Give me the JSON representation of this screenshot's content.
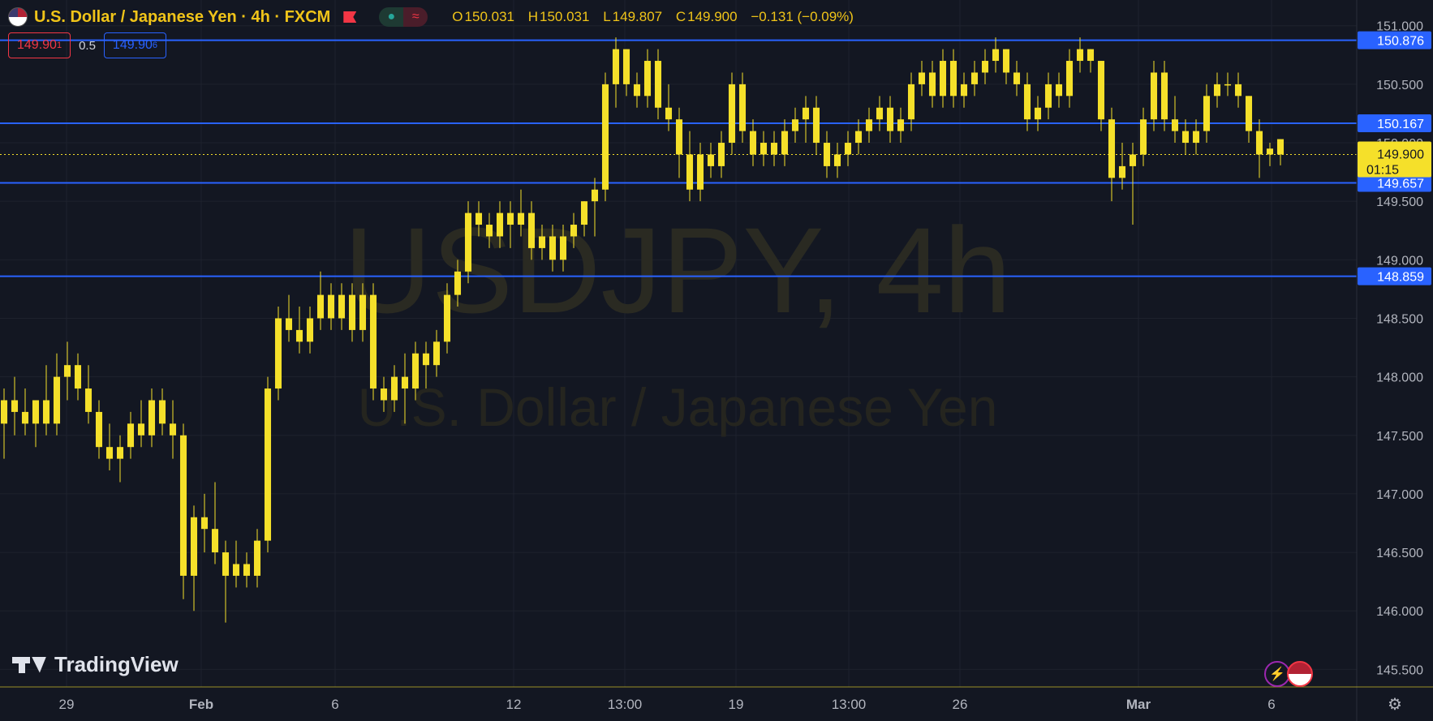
{
  "header": {
    "title": "U.S. Dollar / Japanese Yen · 4h · FXCM",
    "ohlc": {
      "o_label": "O",
      "o": "150.031",
      "h_label": "H",
      "h": "150.031",
      "l_label": "L",
      "l": "149.807",
      "c_label": "C",
      "c": "149.900",
      "change": "−0.131 (−0.09%)"
    },
    "pill_left_icon": "●",
    "pill_right_icon": "≈"
  },
  "trade": {
    "sell_price": "149.90",
    "sell_sup": "1",
    "spread": "0.5",
    "buy_price": "149.90",
    "buy_sup": "6"
  },
  "watermark": {
    "symbol": "USDJPY, 4h",
    "name": "U.S. Dollar / Japanese Yen"
  },
  "logo_text": "TradingView",
  "colors": {
    "background": "#131722",
    "candle": "#f5e02a",
    "hline": "#2962ff",
    "grid": "#1e222d",
    "price_label": "#f5e02a"
  },
  "chart_data": {
    "type": "candlestick",
    "title": "U.S. Dollar / Japanese Yen · 4h · FXCM",
    "ylim": [
      145.35,
      151.22
    ],
    "y_ticks": [
      "151.000",
      "150.500",
      "150.000",
      "149.500",
      "149.000",
      "148.500",
      "148.000",
      "147.500",
      "147.000",
      "146.500",
      "146.000",
      "145.500"
    ],
    "x_ticks": [
      "29",
      "Feb",
      "6",
      "12",
      "13:00",
      "19",
      "13:00",
      "26",
      "Mar",
      "6"
    ],
    "horizontal_levels": [
      "150.876",
      "150.167",
      "149.657",
      "148.859"
    ],
    "current_price": "149.900",
    "countdown": "01:15",
    "grid": true,
    "candles": [
      [
        147.6,
        147.9,
        147.3,
        147.8
      ],
      [
        147.8,
        148.0,
        147.5,
        147.7
      ],
      [
        147.7,
        147.9,
        147.5,
        147.6
      ],
      [
        147.6,
        147.8,
        147.4,
        147.8
      ],
      [
        147.8,
        148.1,
        147.5,
        147.6
      ],
      [
        147.6,
        148.2,
        147.5,
        148.0
      ],
      [
        148.0,
        148.3,
        147.8,
        148.1
      ],
      [
        148.1,
        148.2,
        147.8,
        147.9
      ],
      [
        147.9,
        148.1,
        147.6,
        147.7
      ],
      [
        147.7,
        147.8,
        147.3,
        147.4
      ],
      [
        147.4,
        147.6,
        147.2,
        147.3
      ],
      [
        147.3,
        147.5,
        147.1,
        147.4
      ],
      [
        147.4,
        147.7,
        147.3,
        147.6
      ],
      [
        147.6,
        147.8,
        147.4,
        147.5
      ],
      [
        147.5,
        147.9,
        147.4,
        147.8
      ],
      [
        147.8,
        147.9,
        147.5,
        147.6
      ],
      [
        147.6,
        147.8,
        147.3,
        147.5
      ],
      [
        147.5,
        147.6,
        146.1,
        146.3
      ],
      [
        146.3,
        146.9,
        146.0,
        146.8
      ],
      [
        146.8,
        147.0,
        146.5,
        146.7
      ],
      [
        146.7,
        147.1,
        146.4,
        146.5
      ],
      [
        146.5,
        146.6,
        145.9,
        146.3
      ],
      [
        146.3,
        146.6,
        146.2,
        146.4
      ],
      [
        146.4,
        146.5,
        146.2,
        146.3
      ],
      [
        146.3,
        146.7,
        146.2,
        146.6
      ],
      [
        146.6,
        148.0,
        146.5,
        147.9
      ],
      [
        147.9,
        148.6,
        147.8,
        148.5
      ],
      [
        148.5,
        148.7,
        148.3,
        148.4
      ],
      [
        148.4,
        148.6,
        148.2,
        148.3
      ],
      [
        148.3,
        148.6,
        148.2,
        148.5
      ],
      [
        148.5,
        148.9,
        148.4,
        148.7
      ],
      [
        148.7,
        148.8,
        148.4,
        148.5
      ],
      [
        148.5,
        148.8,
        148.4,
        148.7
      ],
      [
        148.7,
        148.8,
        148.3,
        148.4
      ],
      [
        148.4,
        148.8,
        148.3,
        148.7
      ],
      [
        148.7,
        148.8,
        147.8,
        147.9
      ],
      [
        147.9,
        148.0,
        147.7,
        147.8
      ],
      [
        147.8,
        148.1,
        147.7,
        148.0
      ],
      [
        148.0,
        148.2,
        147.6,
        147.9
      ],
      [
        147.9,
        148.3,
        147.8,
        148.2
      ],
      [
        148.2,
        148.3,
        147.9,
        148.1
      ],
      [
        148.1,
        148.4,
        148.0,
        148.3
      ],
      [
        148.3,
        148.8,
        148.2,
        148.7
      ],
      [
        148.7,
        149.0,
        148.6,
        148.9
      ],
      [
        148.9,
        149.5,
        148.8,
        149.4
      ],
      [
        149.4,
        149.5,
        149.2,
        149.3
      ],
      [
        149.3,
        149.4,
        149.1,
        149.2
      ],
      [
        149.2,
        149.5,
        149.1,
        149.4
      ],
      [
        149.4,
        149.5,
        149.1,
        149.3
      ],
      [
        149.3,
        149.6,
        149.2,
        149.4
      ],
      [
        149.4,
        149.5,
        149.0,
        149.1
      ],
      [
        149.1,
        149.3,
        149.0,
        149.2
      ],
      [
        149.2,
        149.3,
        148.9,
        149.0
      ],
      [
        149.0,
        149.3,
        148.9,
        149.2
      ],
      [
        149.2,
        149.4,
        149.1,
        149.3
      ],
      [
        149.3,
        149.5,
        149.2,
        149.5
      ],
      [
        149.5,
        149.7,
        149.2,
        149.6
      ],
      [
        149.6,
        150.6,
        149.5,
        150.5
      ],
      [
        150.5,
        150.9,
        150.3,
        150.8
      ],
      [
        150.8,
        150.8,
        150.4,
        150.5
      ],
      [
        150.5,
        150.6,
        150.3,
        150.4
      ],
      [
        150.4,
        150.8,
        150.3,
        150.7
      ],
      [
        150.7,
        150.8,
        150.2,
        150.3
      ],
      [
        150.3,
        150.5,
        150.1,
        150.2
      ],
      [
        150.2,
        150.3,
        149.7,
        149.9
      ],
      [
        149.9,
        150.1,
        149.5,
        149.6
      ],
      [
        149.6,
        150.0,
        149.5,
        149.9
      ],
      [
        149.9,
        150.0,
        149.7,
        149.8
      ],
      [
        149.8,
        150.1,
        149.7,
        150.0
      ],
      [
        150.0,
        150.6,
        149.9,
        150.5
      ],
      [
        150.5,
        150.6,
        150.0,
        150.1
      ],
      [
        150.1,
        150.2,
        149.8,
        149.9
      ],
      [
        149.9,
        150.1,
        149.8,
        150.0
      ],
      [
        150.0,
        150.1,
        149.8,
        149.9
      ],
      [
        149.9,
        150.2,
        149.8,
        150.1
      ],
      [
        150.1,
        150.3,
        150.0,
        150.2
      ],
      [
        150.2,
        150.4,
        150.0,
        150.3
      ],
      [
        150.3,
        150.4,
        149.9,
        150.0
      ],
      [
        150.0,
        150.1,
        149.7,
        149.8
      ],
      [
        149.8,
        150.0,
        149.7,
        149.9
      ],
      [
        149.9,
        150.1,
        149.8,
        150.0
      ],
      [
        150.0,
        150.2,
        149.9,
        150.1
      ],
      [
        150.1,
        150.3,
        150.0,
        150.2
      ],
      [
        150.2,
        150.4,
        150.1,
        150.3
      ],
      [
        150.3,
        150.4,
        150.0,
        150.1
      ],
      [
        150.1,
        150.3,
        150.0,
        150.2
      ],
      [
        150.2,
        150.6,
        150.1,
        150.5
      ],
      [
        150.5,
        150.7,
        150.4,
        150.6
      ],
      [
        150.6,
        150.7,
        150.3,
        150.4
      ],
      [
        150.4,
        150.8,
        150.3,
        150.7
      ],
      [
        150.7,
        150.8,
        150.3,
        150.4
      ],
      [
        150.4,
        150.6,
        150.3,
        150.5
      ],
      [
        150.5,
        150.7,
        150.4,
        150.6
      ],
      [
        150.6,
        150.8,
        150.5,
        150.7
      ],
      [
        150.7,
        150.9,
        150.6,
        150.8
      ],
      [
        150.8,
        150.8,
        150.5,
        150.6
      ],
      [
        150.6,
        150.7,
        150.4,
        150.5
      ],
      [
        150.5,
        150.6,
        150.1,
        150.2
      ],
      [
        150.2,
        150.4,
        150.1,
        150.3
      ],
      [
        150.3,
        150.6,
        150.2,
        150.5
      ],
      [
        150.5,
        150.6,
        150.3,
        150.4
      ],
      [
        150.4,
        150.8,
        150.3,
        150.7
      ],
      [
        150.7,
        150.9,
        150.6,
        150.8
      ],
      [
        150.8,
        150.8,
        150.6,
        150.7
      ],
      [
        150.7,
        150.7,
        150.1,
        150.2
      ],
      [
        150.2,
        150.3,
        149.5,
        149.7
      ],
      [
        149.7,
        150.0,
        149.6,
        149.8
      ],
      [
        149.8,
        150.0,
        149.3,
        149.9
      ],
      [
        149.9,
        150.3,
        149.8,
        150.2
      ],
      [
        150.2,
        150.7,
        150.1,
        150.6
      ],
      [
        150.6,
        150.7,
        150.1,
        150.2
      ],
      [
        150.2,
        150.4,
        150.0,
        150.1
      ],
      [
        150.1,
        150.2,
        149.9,
        150.0
      ],
      [
        150.0,
        150.2,
        149.9,
        150.1
      ],
      [
        150.1,
        150.5,
        150.0,
        150.4
      ],
      [
        150.4,
        150.6,
        150.3,
        150.5
      ],
      [
        150.5,
        150.6,
        150.4,
        150.5
      ],
      [
        150.5,
        150.6,
        150.3,
        150.4
      ],
      [
        150.4,
        150.4,
        150.0,
        150.1
      ],
      [
        150.1,
        150.2,
        149.7,
        149.9
      ],
      [
        149.9,
        150.0,
        149.8,
        149.95
      ],
      [
        150.031,
        150.031,
        149.807,
        149.9
      ]
    ]
  }
}
